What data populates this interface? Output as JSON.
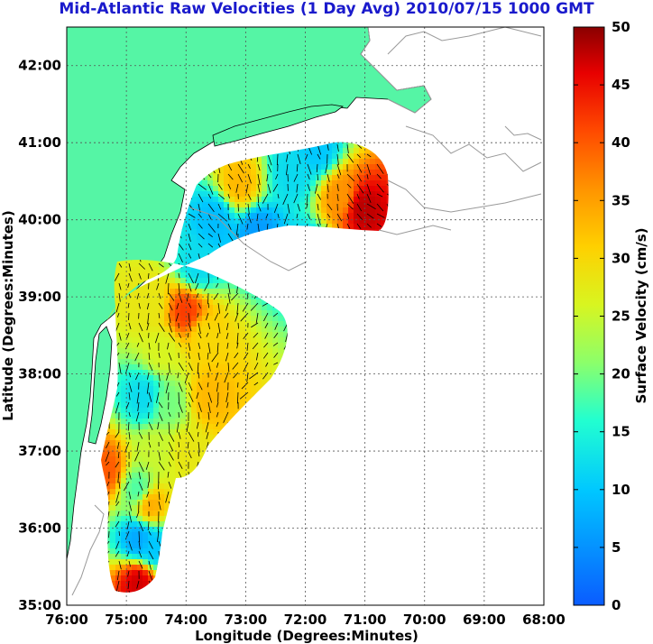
{
  "title": "Mid-Atlantic Raw Velocities (1 Day Avg) 2010/07/15 1000 GMT",
  "colors": {
    "land": "#55f5a5",
    "map_bg": "#ffffff",
    "arrow": "#000000",
    "coast": "#a0a0a0",
    "grid": "#555555"
  },
  "chart_data": {
    "type": "heatmap",
    "title": "Mid-Atlantic Raw Velocities (1 Day Avg) 2010/07/15 1000 GMT",
    "xlabel": "Longitude (Degrees:Minutes)",
    "ylabel": "Latitude (Degrees:Minutes)",
    "xlim": [
      -76,
      -68
    ],
    "ylim": [
      35,
      42.5
    ],
    "x_ticks": [
      {
        "value": -76,
        "label": "76:00"
      },
      {
        "value": -75,
        "label": "75:00"
      },
      {
        "value": -74,
        "label": "74:00"
      },
      {
        "value": -73,
        "label": "73:00"
      },
      {
        "value": -72,
        "label": "72:00"
      },
      {
        "value": -71,
        "label": "71:00"
      },
      {
        "value": -70,
        "label": "70:00"
      },
      {
        "value": -69,
        "label": "69:00"
      },
      {
        "value": -68,
        "label": "68:00"
      }
    ],
    "y_ticks": [
      {
        "value": 35,
        "label": "35:00"
      },
      {
        "value": 36,
        "label": "36:00"
      },
      {
        "value": 37,
        "label": "37:00"
      },
      {
        "value": 38,
        "label": "38:00"
      },
      {
        "value": 39,
        "label": "39:00"
      },
      {
        "value": 40,
        "label": "40:00"
      },
      {
        "value": 41,
        "label": "41:00"
      },
      {
        "value": 42,
        "label": "42:00"
      }
    ],
    "grid": true,
    "colorbar": {
      "label": "Surface Velocity (cm/s)",
      "min": 0,
      "max": 50,
      "ticks": [
        "0",
        "5",
        "10",
        "15",
        "20",
        "25",
        "30",
        "35",
        "40",
        "45",
        "50"
      ]
    },
    "velocity_zones": [
      {
        "lon": -71.05,
        "lat": 40.15,
        "speed": 48
      },
      {
        "lon": -71.4,
        "lat": 40.3,
        "speed": 36
      },
      {
        "lon": -73.1,
        "lat": 40.45,
        "speed": 33
      },
      {
        "lon": -72.2,
        "lat": 40.6,
        "speed": 12
      },
      {
        "lon": -71.8,
        "lat": 40.9,
        "speed": 10
      },
      {
        "lon": -72.8,
        "lat": 39.85,
        "speed": 6
      },
      {
        "lon": -73.5,
        "lat": 40.0,
        "speed": 9
      },
      {
        "lon": -72.0,
        "lat": 39.6,
        "speed": 11
      },
      {
        "lon": -73.8,
        "lat": 39.4,
        "speed": 12
      },
      {
        "lon": -74.0,
        "lat": 38.8,
        "speed": 42
      },
      {
        "lon": -74.6,
        "lat": 38.9,
        "speed": 28
      },
      {
        "lon": -73.7,
        "lat": 38.5,
        "speed": 30
      },
      {
        "lon": -74.4,
        "lat": 38.3,
        "speed": 26
      },
      {
        "lon": -73.6,
        "lat": 37.7,
        "speed": 33
      },
      {
        "lon": -74.7,
        "lat": 37.7,
        "speed": 12
      },
      {
        "lon": -74.3,
        "lat": 37.6,
        "speed": 20
      },
      {
        "lon": -74.5,
        "lat": 37.0,
        "speed": 25
      },
      {
        "lon": -74.0,
        "lat": 37.0,
        "speed": 28
      },
      {
        "lon": -75.35,
        "lat": 36.75,
        "speed": 40
      },
      {
        "lon": -74.8,
        "lat": 36.5,
        "speed": 18
      },
      {
        "lon": -74.6,
        "lat": 36.3,
        "speed": 34
      },
      {
        "lon": -74.8,
        "lat": 35.85,
        "speed": 7
      },
      {
        "lon": -74.55,
        "lat": 35.75,
        "speed": 10
      },
      {
        "lon": -74.8,
        "lat": 35.3,
        "speed": 47
      }
    ]
  }
}
